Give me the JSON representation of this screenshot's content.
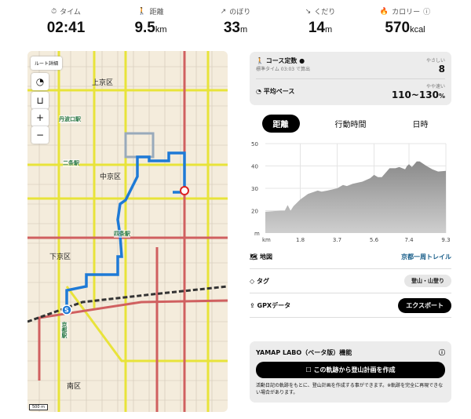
{
  "stats": [
    {
      "icon": "stopwatch-icon",
      "glyph": "⏱",
      "label": "タイム",
      "value": "02:41",
      "unit": ""
    },
    {
      "icon": "walker-icon",
      "glyph": "🚶",
      "label": "距離",
      "value": "9.5",
      "unit": "km"
    },
    {
      "icon": "arrow-up-right-icon",
      "glyph": "↗",
      "label": "のぼり",
      "value": "33",
      "unit": "m"
    },
    {
      "icon": "arrow-down-right-icon",
      "glyph": "↘",
      "label": "くだり",
      "value": "14",
      "unit": "m"
    },
    {
      "icon": "flame-icon",
      "glyph": "🔥",
      "label": "カロリー",
      "value": "570",
      "unit": "kcal"
    }
  ],
  "map": {
    "route_detail": "ルート詳細",
    "labels": [
      "上京区",
      "中京区",
      "下京区",
      "南区"
    ],
    "scale": "500 m",
    "stations": [
      "丹波口駅",
      "二条駅",
      "四条駅",
      "京都駅"
    ]
  },
  "course": {
    "title": "コース定数",
    "sub": "標準タイム 03:03 で算出",
    "difficulty": "やさしい",
    "value": "8"
  },
  "pace": {
    "title": "平均ペース",
    "level": "やや速い",
    "value": "110~130",
    "unit": "%"
  },
  "tabs": [
    "距離",
    "行動時間",
    "日時"
  ],
  "chart_data": {
    "type": "area",
    "xlabel": "km",
    "ylabel": "m",
    "ylim": [
      10,
      50
    ],
    "xlim": [
      0,
      9.3
    ],
    "yticks": [
      "50",
      "40",
      "30",
      "20"
    ],
    "xticks": [
      "1.8",
      "3.7",
      "5.6",
      "7.4",
      "9.3"
    ],
    "x": [
      0,
      0.8,
      1.0,
      1.15,
      1.3,
      1.45,
      1.8,
      2.2,
      2.7,
      2.9,
      3.2,
      3.7,
      4.0,
      4.2,
      4.5,
      5.0,
      5.4,
      5.6,
      5.8,
      6.0,
      6.4,
      6.7,
      6.9,
      7.2,
      7.3,
      7.4,
      7.55,
      7.8,
      7.95,
      8.3,
      8.6,
      8.9,
      9.3
    ],
    "y": [
      19.5,
      20,
      20,
      22.5,
      20,
      22,
      25,
      27.5,
      29,
      28.5,
      29,
      30,
      31.5,
      31,
      32,
      33,
      34.5,
      36,
      35,
      35,
      39,
      39,
      39.5,
      38.5,
      40,
      40.8,
      39.5,
      42,
      42,
      40,
      38.5,
      37.5,
      37.8
    ]
  },
  "list": {
    "map_label": "地図",
    "map_value": "京都一周トレイル",
    "tag_label": "タグ",
    "tag_value": "登山・山登り",
    "gpx_label": "GPXデータ",
    "gpx_button": "エクスポート"
  },
  "labo": {
    "title": "YAMAP LABO（ベータ版）機能",
    "button": "この軌跡から登山計画を作成",
    "note": "活動日記の軌跡をもとに、登山計画を作成する事ができます。※軌跡を完全に再現できない場合があります。"
  }
}
